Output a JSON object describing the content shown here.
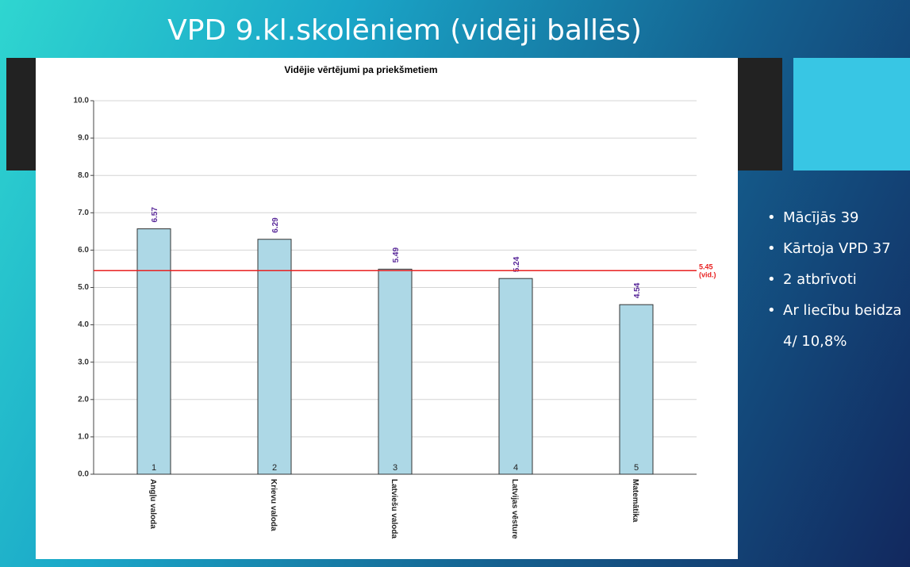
{
  "slide": {
    "title": "VPD 9.kl.skolēniem (vidēji ballēs)",
    "bullets": [
      "Mācījās 39",
      "Kārtoja VPD 37",
      "2 atbrīvoti",
      "Ar liecību beidza 4/ 10,8%"
    ]
  },
  "chart_data": {
    "type": "bar",
    "title": "Vidējie vērtējumi pa priekšmetiem",
    "categories": [
      "Angļu valoda",
      "Krievu valoda",
      "Latviešu valoda",
      "Latvijas vēsture",
      "Matemātika"
    ],
    "bar_numbers": [
      "1",
      "2",
      "3",
      "4",
      "5"
    ],
    "values": [
      6.57,
      6.29,
      5.49,
      5.24,
      4.54
    ],
    "color": "#add8e6",
    "label_color": "#5a2a9a",
    "average": {
      "value": 5.45,
      "label": "(vid.)",
      "color": "#e82020"
    },
    "ylim": [
      0,
      10
    ],
    "yticks": [
      {
        "value": 0,
        "label": "0.0"
      },
      {
        "value": 1,
        "label": "1.0"
      },
      {
        "value": 2,
        "label": "2.0"
      },
      {
        "value": 3,
        "label": "3.0"
      },
      {
        "value": 4,
        "label": "4.0"
      },
      {
        "value": 5,
        "label": "5.0"
      },
      {
        "value": 6,
        "label": "6.0"
      },
      {
        "value": 7,
        "label": "7.0"
      },
      {
        "value": 8,
        "label": "8.0"
      },
      {
        "value": 9,
        "label": "9.0"
      },
      {
        "value": 10,
        "label": "10.0"
      }
    ],
    "grid": true
  }
}
